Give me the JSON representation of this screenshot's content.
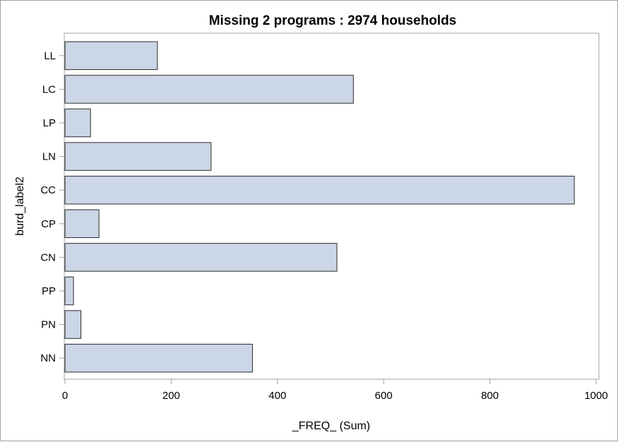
{
  "chart_data": {
    "type": "bar",
    "orientation": "horizontal",
    "title": "Missing 2 programs : 2974 households",
    "xlabel": "_FREQ_ (Sum)",
    "ylabel": "burd_label2",
    "categories": [
      "LL",
      "LC",
      "LP",
      "LN",
      "CC",
      "CP",
      "CN",
      "PP",
      "PN",
      "NN"
    ],
    "values": [
      174,
      543,
      48,
      275,
      959,
      64,
      512,
      16,
      30,
      353
    ],
    "xlim": [
      0,
      1000
    ],
    "xticks": [
      0,
      200,
      400,
      600,
      800,
      1000
    ],
    "grid": false,
    "bar_fill": "#cbd6e6",
    "bar_stroke": "#2b2b2b"
  }
}
